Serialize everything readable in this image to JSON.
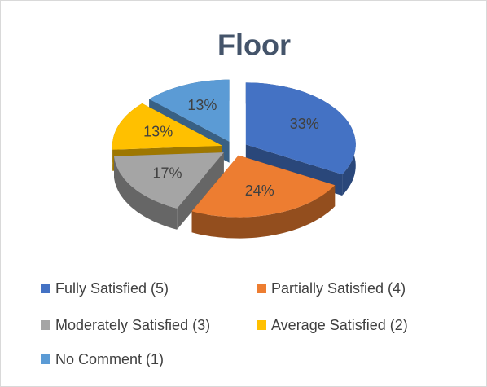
{
  "chart_data": {
    "type": "pie",
    "title": "Floor",
    "categories": [
      "Fully Satisfied (5)",
      "Partially Satisfied (4)",
      "Moderately Satisfied (3)",
      "Average Satisfied (2)",
      "No Comment (1)"
    ],
    "values": [
      33,
      24,
      17,
      13,
      13
    ],
    "value_labels": [
      "33%",
      "24%",
      "17%",
      "13%",
      "13%"
    ],
    "colors": [
      "#4472c4",
      "#ed7d31",
      "#a5a5a5",
      "#ffc000",
      "#5b9bd5"
    ],
    "legend": "bottom"
  }
}
